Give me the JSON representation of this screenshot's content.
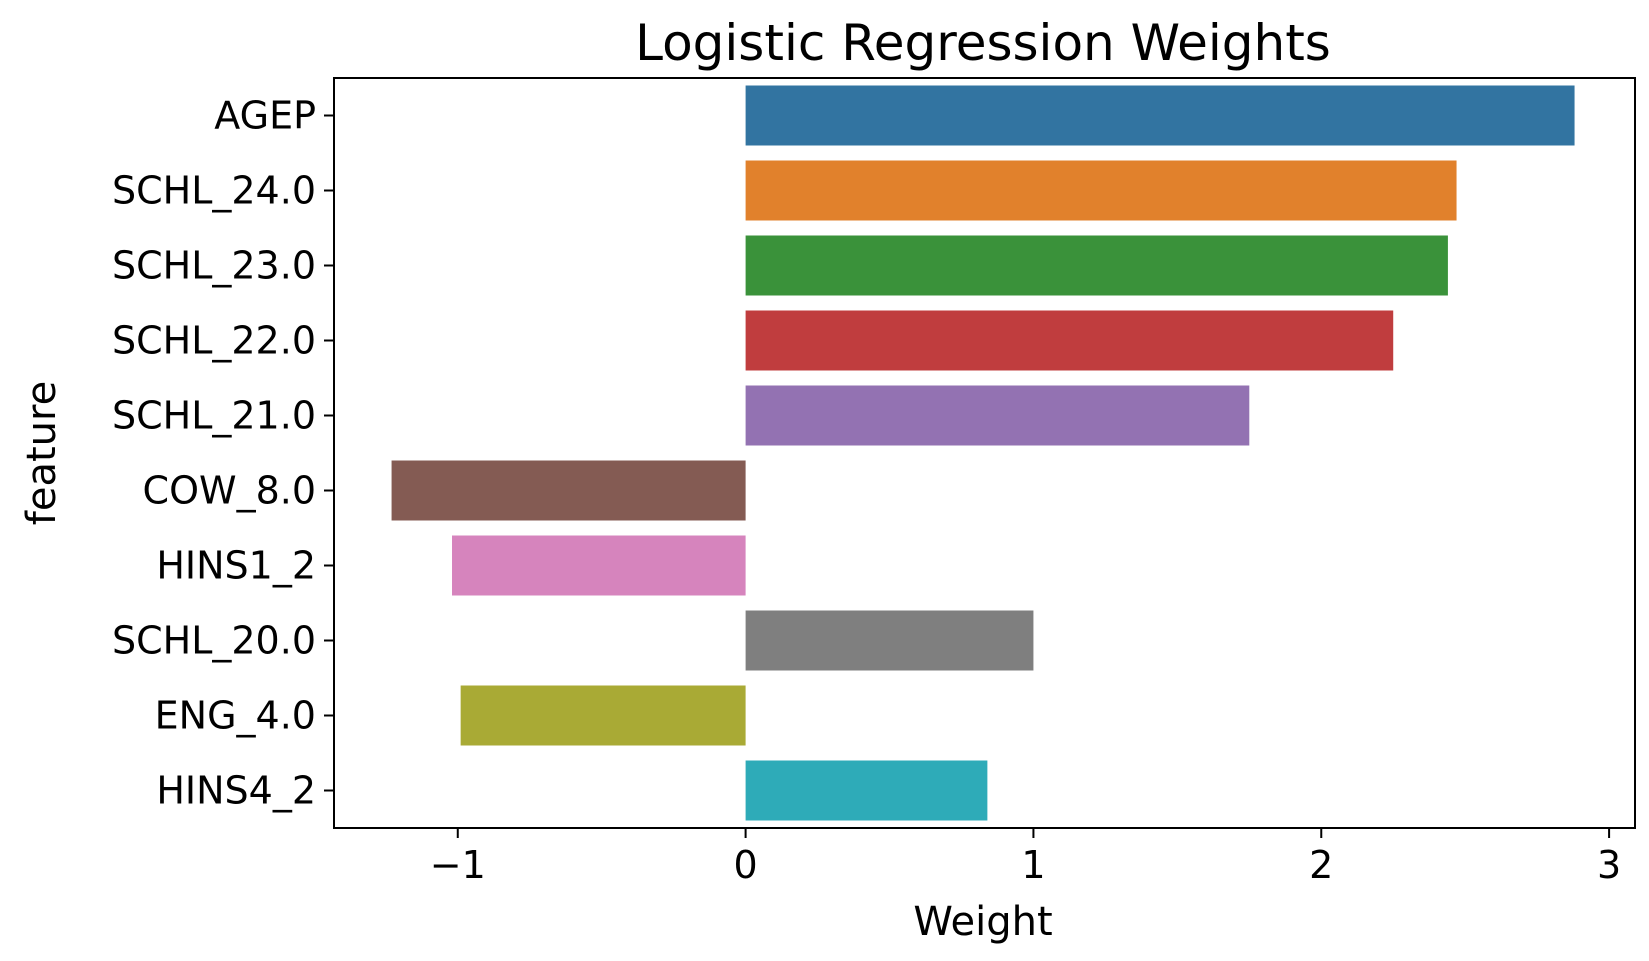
{
  "chart_data": {
    "type": "bar",
    "orientation": "horizontal",
    "title": "Logistic Regression Weights",
    "xlabel": "Weight",
    "ylabel": "feature",
    "categories": [
      "AGEP",
      "SCHL_24.0",
      "SCHL_23.0",
      "SCHL_22.0",
      "SCHL_21.0",
      "COW_8.0",
      "HINS1_2",
      "SCHL_20.0",
      "ENG_4.0",
      "HINS4_2"
    ],
    "values": [
      2.88,
      2.47,
      2.44,
      2.25,
      1.75,
      -1.23,
      -1.02,
      1.0,
      -0.99,
      0.84
    ],
    "colors": [
      "#3274a1",
      "#e1812c",
      "#3a923a",
      "#c03d3e",
      "#9372b2",
      "#845b53",
      "#d684bd",
      "#7f7f7f",
      "#a9aa35",
      "#2eabb8"
    ],
    "xlim": [
      -1.43,
      3.09
    ],
    "xticks": [
      -1,
      0,
      1,
      2,
      3
    ],
    "xtick_labels": [
      "−1",
      "0",
      "1",
      "2",
      "3"
    ],
    "grid": false,
    "legend": "none"
  }
}
